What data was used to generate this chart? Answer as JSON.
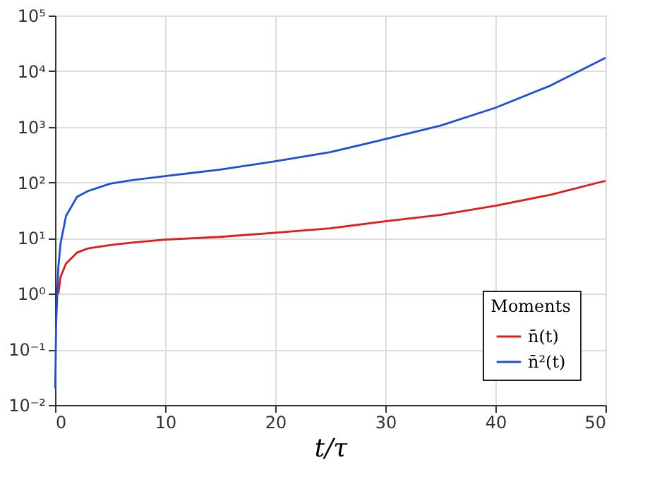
{
  "chart_data": {
    "type": "line",
    "xlabel": "t/τ",
    "legend_title": "Moments",
    "legend": "bottom right",
    "grid": true,
    "log": "y",
    "xlim": [
      0,
      50
    ],
    "xticks": [
      0,
      10,
      20,
      30,
      40,
      50
    ],
    "ylim": [
      0.01,
      100000
    ],
    "yticks": [
      {
        "value": 0.01,
        "label": "10⁻²"
      },
      {
        "value": 0.1,
        "label": "10⁻¹"
      },
      {
        "value": 1,
        "label": "10⁰"
      },
      {
        "value": 10,
        "label": "10¹"
      },
      {
        "value": 100,
        "label": "10²"
      },
      {
        "value": 1000,
        "label": "10³"
      },
      {
        "value": 10000,
        "label": "10⁴"
      },
      {
        "value": 100000,
        "label": "10⁵"
      }
    ],
    "x": [
      0.02,
      0.1,
      0.3,
      0.5,
      1,
      2,
      3,
      5,
      7,
      10,
      15,
      20,
      25,
      30,
      35,
      40,
      45,
      50
    ],
    "series": [
      {
        "name": "n̄(t)",
        "color": "#e31a1c",
        "values": [
          null,
          null,
          1,
          2,
          3.5,
          5.5,
          6.5,
          7.5,
          8.3,
          9.4,
          10.5,
          12.5,
          15,
          20,
          26,
          38,
          60,
          107
        ]
      },
      {
        "name": "n̄²(t)",
        "color": "#1f4fd8",
        "values": [
          0.02,
          0.3,
          3,
          8,
          25,
          55,
          70,
          95,
          110,
          130,
          170,
          240,
          350,
          600,
          1050,
          2200,
          5500,
          17400
        ]
      }
    ]
  }
}
